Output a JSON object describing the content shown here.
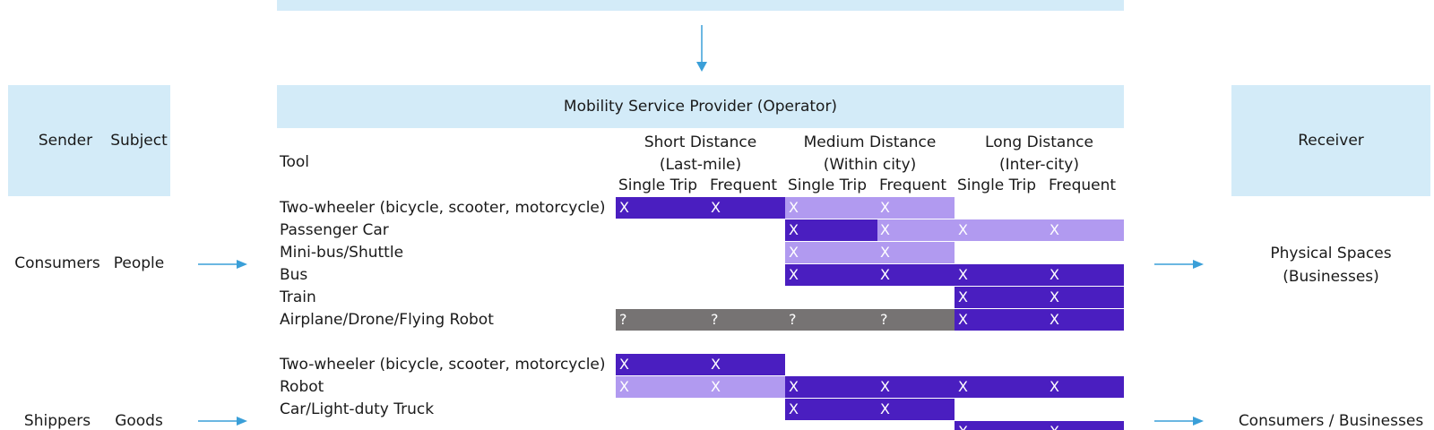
{
  "top_header": {
    "label": ""
  },
  "operator_header": {
    "label": "Mobility Service Provider (Operator)"
  },
  "sender_box": {
    "sender": "Sender",
    "subject": "Subject"
  },
  "receiver_box": {
    "label": "Receiver"
  },
  "table": {
    "tool_header": "Tool",
    "distance_groups": [
      {
        "line1": "Short Distance",
        "line2": "(Last-mile)"
      },
      {
        "line1": "Medium Distance",
        "line2": "(Within city)"
      },
      {
        "line1": "Long Distance",
        "line2": "(Inter-city)"
      }
    ],
    "sub_headers": [
      "Single Trip",
      "Frequent",
      "Single Trip",
      "Frequent",
      "Single Trip",
      "Frequent"
    ]
  },
  "people_section": {
    "sender": "Consumers",
    "subject": "People",
    "receiver_line1": "Physical Spaces",
    "receiver_line2": "(Businesses)",
    "rows": [
      {
        "tool": "Two-wheeler (bicycle, scooter, motorcycle)",
        "cells": [
          [
            "dark",
            "X",
            "X"
          ],
          [
            "light",
            "X",
            "X"
          ],
          [
            "none",
            "",
            ""
          ]
        ]
      },
      {
        "tool": "Passenger Car",
        "cells": [
          [
            "none",
            "",
            ""
          ],
          [
            "dark-light",
            "X",
            "X"
          ],
          [
            "light",
            "X",
            "X"
          ]
        ]
      },
      {
        "tool": "Mini-bus/Shuttle",
        "cells": [
          [
            "none",
            "",
            ""
          ],
          [
            "light",
            "X",
            "X"
          ],
          [
            "none",
            "",
            ""
          ]
        ]
      },
      {
        "tool": "Bus",
        "cells": [
          [
            "none",
            "",
            ""
          ],
          [
            "dark",
            "X",
            "X"
          ],
          [
            "dark",
            "X",
            "X"
          ]
        ]
      },
      {
        "tool": "Train",
        "cells": [
          [
            "none",
            "",
            ""
          ],
          [
            "none",
            "",
            ""
          ],
          [
            "dark",
            "X",
            "X"
          ]
        ]
      },
      {
        "tool": "Airplane/Drone/Flying Robot",
        "cells": [
          [
            "gray",
            "?",
            "?"
          ],
          [
            "gray",
            "?",
            "?"
          ],
          [
            "dark",
            "X",
            "X"
          ]
        ]
      }
    ]
  },
  "goods_section": {
    "sender": "Shippers",
    "subject": "Goods",
    "receiver": "Consumers / Businesses",
    "rows": [
      {
        "tool": "Two-wheeler (bicycle, scooter, motorcycle)",
        "cells": [
          [
            "dark",
            "X",
            "X"
          ],
          [
            "none",
            "",
            ""
          ],
          [
            "none",
            "",
            ""
          ]
        ]
      },
      {
        "tool": "Robot",
        "cells": [
          [
            "light",
            "X",
            "X"
          ],
          [
            "dark",
            "X",
            "X"
          ],
          [
            "dark",
            "X",
            "X"
          ]
        ]
      },
      {
        "tool": "Car/Light-duty Truck",
        "cells": [
          [
            "none",
            "",
            ""
          ],
          [
            "dark",
            "X",
            "X"
          ],
          [
            "none",
            "",
            ""
          ]
        ]
      },
      {
        "tool": "",
        "cells": [
          [
            "none",
            "",
            ""
          ],
          [
            "none",
            "",
            ""
          ],
          [
            "dark",
            "X",
            "X"
          ]
        ]
      }
    ]
  },
  "colors": {
    "box": "#d3ebf8",
    "dark": "#4a1ec0",
    "light": "#b19af0",
    "gray": "#767373",
    "arrow": "#3a9fd8"
  }
}
